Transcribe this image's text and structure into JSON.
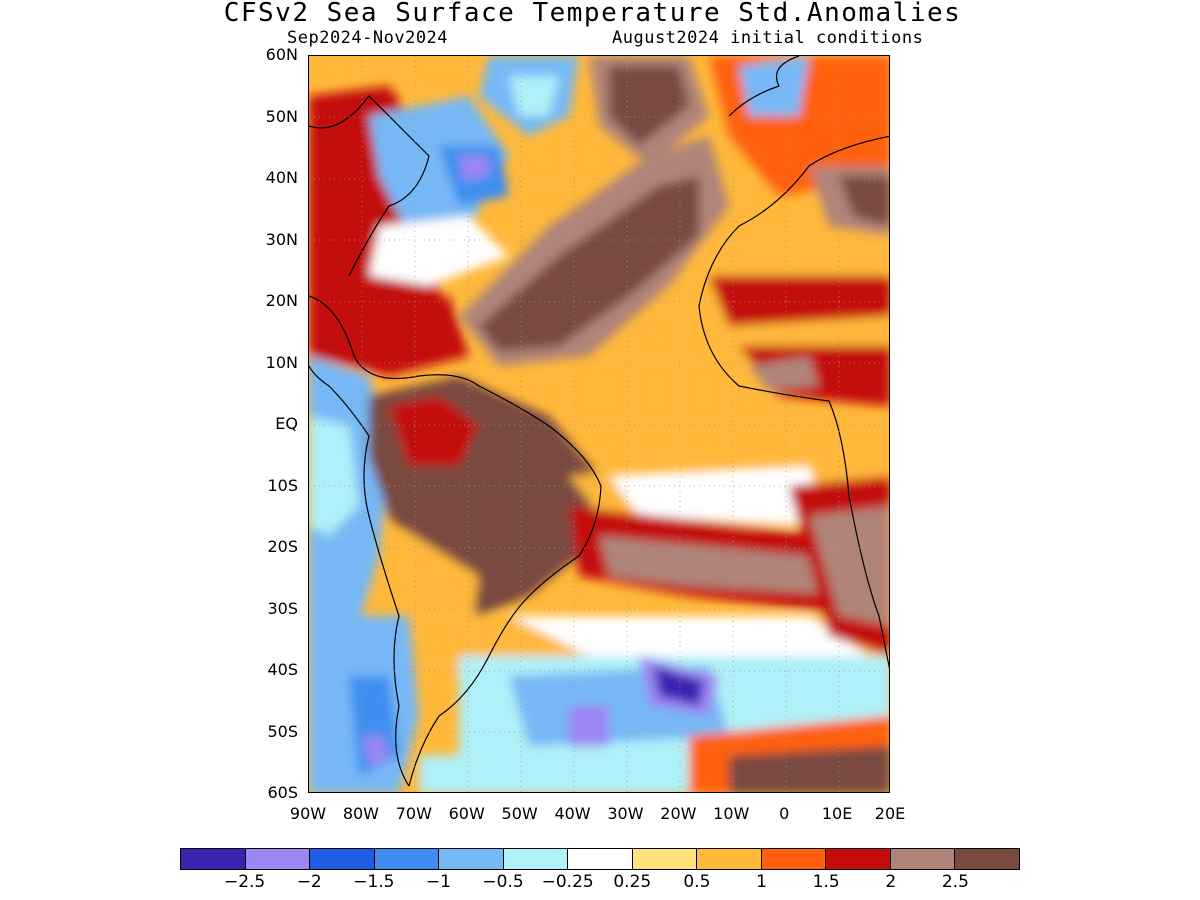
{
  "title": "CFSv2 Sea Surface Temperature Std.Anomalies",
  "period": "Sep2024-Nov2024",
  "initial_conditions": "August2024 initial conditions",
  "lat_labels": [
    "60N",
    "50N",
    "40N",
    "30N",
    "20N",
    "10N",
    "EQ",
    "10S",
    "20S",
    "30S",
    "40S",
    "50S",
    "60S"
  ],
  "lon_labels": [
    "90W",
    "80W",
    "70W",
    "60W",
    "50W",
    "40W",
    "30W",
    "20W",
    "10W",
    "0",
    "10E",
    "20E"
  ],
  "colorbar": {
    "colors": [
      "#3a22b0",
      "#9b86f4",
      "#1e5ee6",
      "#3d8ef0",
      "#76b8f5",
      "#b0f0f8",
      "#ffffff",
      "#ffe27a",
      "#ffb83a",
      "#ff6010",
      "#c40c0c",
      "#b08478",
      "#7a4a40"
    ],
    "labels": [
      "-2.5",
      "-2",
      "-1.5",
      "-1",
      "-0.5",
      "-0.25",
      "0.25",
      "0.5",
      "1",
      "1.5",
      "2",
      "2.5"
    ]
  }
}
